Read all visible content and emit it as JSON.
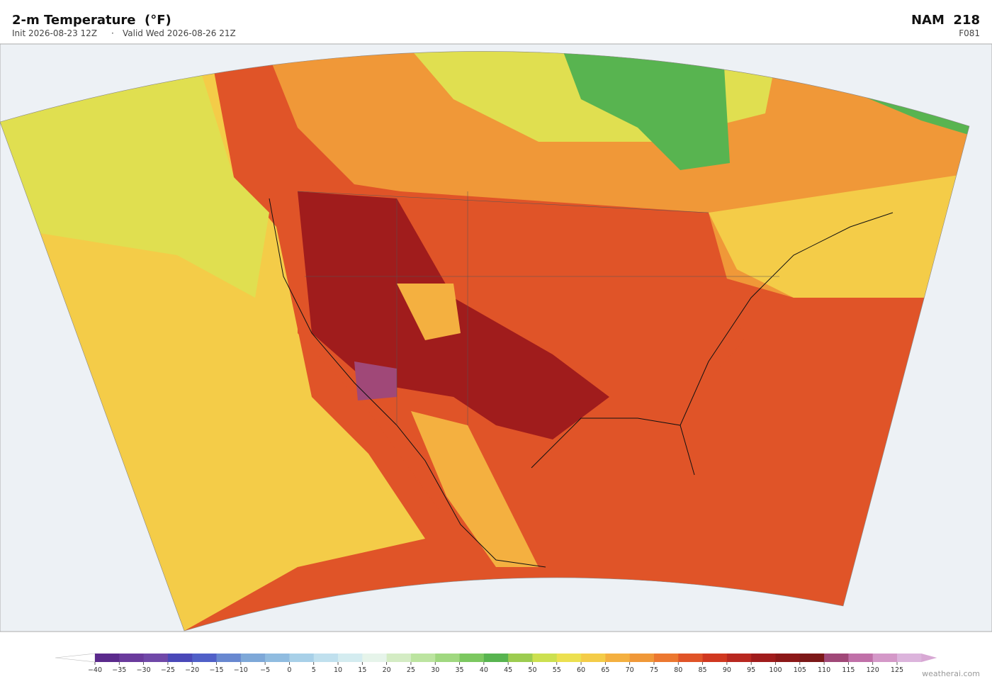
{
  "header": {
    "title": "2-m Temperature  (°F)",
    "init": "Init 2026-08-23 12Z",
    "separator": "·",
    "valid": "Valid Wed 2026-08-26 21Z",
    "model": "NAM  218",
    "forecast_hour": "F081"
  },
  "colorbar": {
    "ticks": [
      {
        "value": -40,
        "label": "−40"
      },
      {
        "value": -35,
        "label": "−35"
      },
      {
        "value": -30,
        "label": "−30"
      },
      {
        "value": -25,
        "label": "−25"
      },
      {
        "value": -20,
        "label": "−20"
      },
      {
        "value": -15,
        "label": "−15"
      },
      {
        "value": -10,
        "label": "−10"
      },
      {
        "value": -5,
        "label": "−5"
      },
      0,
      5,
      10,
      15,
      20,
      25,
      30,
      35,
      40,
      45,
      50,
      55,
      60,
      65,
      70,
      75,
      80,
      85,
      90,
      95,
      100,
      105,
      110,
      115,
      120,
      125
    ],
    "colors": [
      "#5b2a8c",
      "#6a3a9c",
      "#7048a8",
      "#4a48b8",
      "#5060c8",
      "#6888d0",
      "#7ea8d8",
      "#90bce0",
      "#a8d0e8",
      "#c0e0ee",
      "#d4ecf0",
      "#e6f4ea",
      "#d4ecc4",
      "#bce4a0",
      "#a0d880",
      "#7cc860",
      "#58b450",
      "#9ccc50",
      "#cce050",
      "#ece050",
      "#f4cc48",
      "#f4b040",
      "#f09838",
      "#ec7830",
      "#e05428",
      "#d03820",
      "#b82820",
      "#a01c1c",
      "#8c1818",
      "#7c1818",
      "#a04878",
      "#c070a8",
      "#d498c8",
      "#dcb4dc"
    ],
    "under_color": "#ffffff",
    "over_color": "#d8a8d4"
  },
  "attribution": "weatherai.com"
}
